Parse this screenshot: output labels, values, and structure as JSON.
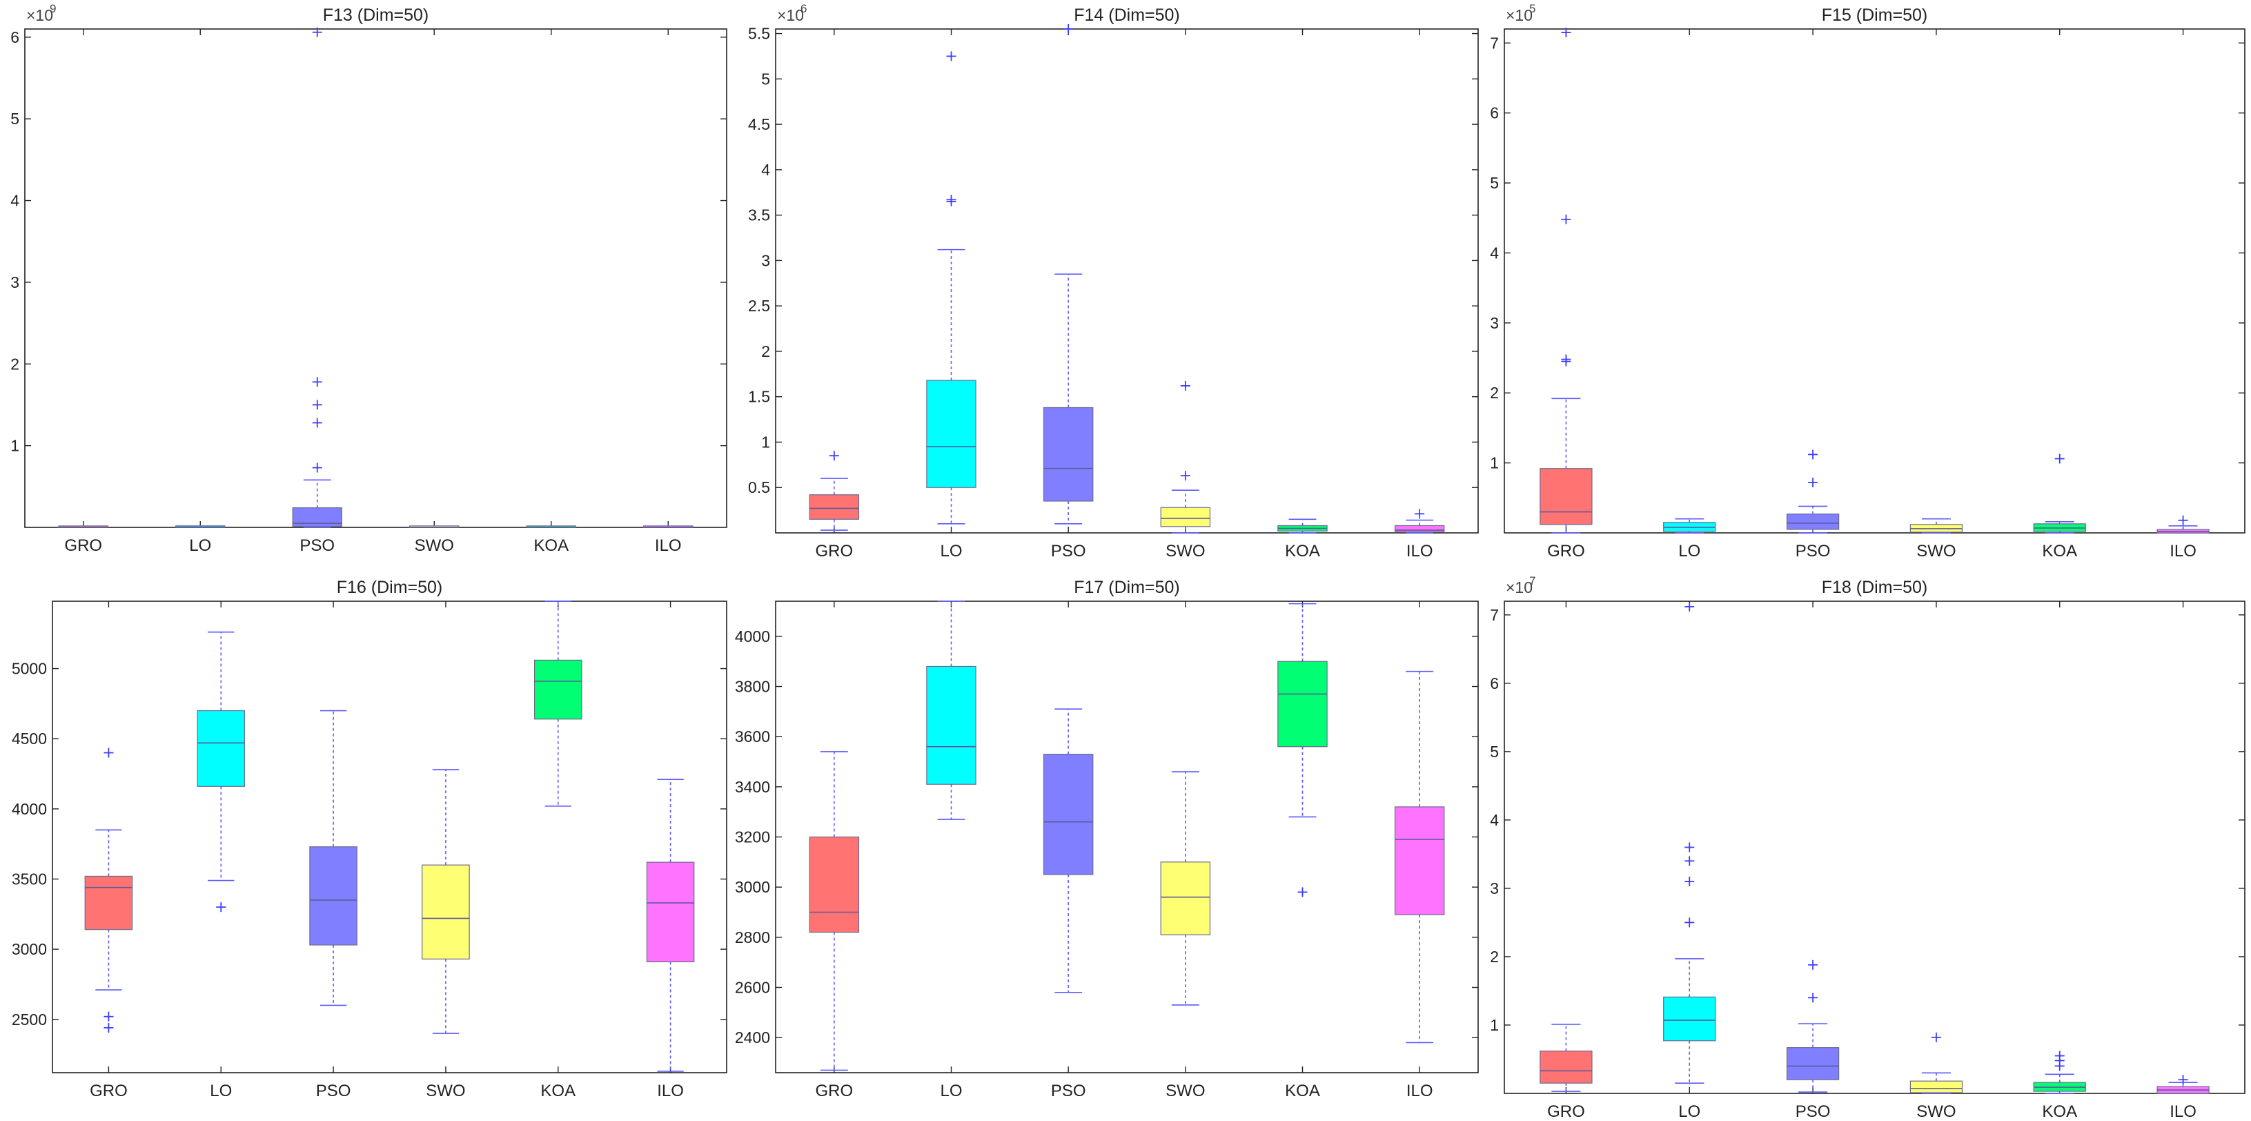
{
  "chart_data": [
    {
      "type": "box",
      "title": "F13 (Dim=50)",
      "exponent_label": "×10",
      "exponent": "9",
      "ylim": [
        0,
        6.1
      ],
      "yticks": [
        1,
        2,
        3,
        4,
        5,
        6
      ],
      "categories": [
        "GRO",
        "LO",
        "PSO",
        "SWO",
        "KOA",
        "ILO"
      ],
      "boxes": [
        {
          "q1": 0.001,
          "median": 0.002,
          "q3": 0.004,
          "whisker_low": 0.0,
          "whisker_high": 0.006,
          "outliers": []
        },
        {
          "q1": 0.002,
          "median": 0.004,
          "q3": 0.008,
          "whisker_low": 0.0,
          "whisker_high": 0.012,
          "outliers": []
        },
        {
          "q1": 0.01,
          "median": 0.05,
          "q3": 0.24,
          "whisker_low": 0.0,
          "whisker_high": 0.58,
          "outliers": [
            0.73,
            1.28,
            1.5,
            1.78,
            6.06
          ]
        },
        {
          "q1": 0.001,
          "median": 0.002,
          "q3": 0.004,
          "whisker_low": 0.0,
          "whisker_high": 0.006,
          "outliers": []
        },
        {
          "q1": 0.001,
          "median": 0.002,
          "q3": 0.004,
          "whisker_low": 0.0,
          "whisker_high": 0.006,
          "outliers": []
        },
        {
          "q1": 0.001,
          "median": 0.002,
          "q3": 0.004,
          "whisker_low": 0.0,
          "whisker_high": 0.006,
          "outliers": []
        }
      ]
    },
    {
      "type": "box",
      "title": "F14 (Dim=50)",
      "exponent_label": "×10",
      "exponent": "6",
      "ylim": [
        0,
        5.55
      ],
      "yticks": [
        0.5,
        1,
        1.5,
        2,
        2.5,
        3,
        3.5,
        4,
        4.5,
        5,
        5.5
      ],
      "categories": [
        "GRO",
        "LO",
        "PSO",
        "SWO",
        "KOA",
        "ILO"
      ],
      "boxes": [
        {
          "q1": 0.15,
          "median": 0.27,
          "q3": 0.42,
          "whisker_low": 0.03,
          "whisker_high": 0.6,
          "outliers": [
            0.85
          ]
        },
        {
          "q1": 0.5,
          "median": 0.95,
          "q3": 1.68,
          "whisker_low": 0.1,
          "whisker_high": 3.12,
          "outliers": [
            3.65,
            3.67,
            5.25
          ]
        },
        {
          "q1": 0.35,
          "median": 0.71,
          "q3": 1.38,
          "whisker_low": 0.1,
          "whisker_high": 2.85,
          "outliers": [
            5.58
          ]
        },
        {
          "q1": 0.07,
          "median": 0.16,
          "q3": 0.28,
          "whisker_low": 0.0,
          "whisker_high": 0.47,
          "outliers": [
            0.63,
            1.62
          ]
        },
        {
          "q1": 0.02,
          "median": 0.05,
          "q3": 0.08,
          "whisker_low": 0.0,
          "whisker_high": 0.15,
          "outliers": []
        },
        {
          "q1": 0.01,
          "median": 0.03,
          "q3": 0.08,
          "whisker_low": 0.0,
          "whisker_high": 0.14,
          "outliers": [
            0.21
          ]
        }
      ]
    },
    {
      "type": "box",
      "title": "F15 (Dim=50)",
      "exponent_label": "×10",
      "exponent": "5",
      "ylim": [
        0,
        7.2
      ],
      "yticks": [
        1,
        2,
        3,
        4,
        5,
        6,
        7
      ],
      "categories": [
        "GRO",
        "LO",
        "PSO",
        "SWO",
        "KOA",
        "ILO"
      ],
      "boxes": [
        {
          "q1": 0.12,
          "median": 0.3,
          "q3": 0.92,
          "whisker_low": 0.0,
          "whisker_high": 1.92,
          "outliers": [
            2.45,
            2.48,
            4.48,
            7.15
          ]
        },
        {
          "q1": 0.02,
          "median": 0.08,
          "q3": 0.15,
          "whisker_low": 0.0,
          "whisker_high": 0.2,
          "outliers": []
        },
        {
          "q1": 0.05,
          "median": 0.14,
          "q3": 0.27,
          "whisker_low": 0.0,
          "whisker_high": 0.38,
          "outliers": [
            0.72,
            1.12
          ]
        },
        {
          "q1": 0.01,
          "median": 0.06,
          "q3": 0.12,
          "whisker_low": 0.0,
          "whisker_high": 0.2,
          "outliers": []
        },
        {
          "q1": 0.02,
          "median": 0.07,
          "q3": 0.13,
          "whisker_low": 0.0,
          "whisker_high": 0.16,
          "outliers": [
            1.06
          ]
        },
        {
          "q1": 0.0,
          "median": 0.02,
          "q3": 0.05,
          "whisker_low": 0.0,
          "whisker_high": 0.1,
          "outliers": [
            0.18
          ]
        }
      ]
    },
    {
      "type": "box",
      "title": "F16 (Dim=50)",
      "exponent_label": "",
      "exponent": "",
      "ylim": [
        2120,
        5480
      ],
      "yticks": [
        2500,
        3000,
        3500,
        4000,
        4500,
        5000
      ],
      "categories": [
        "GRO",
        "LO",
        "PSO",
        "SWO",
        "KOA",
        "ILO"
      ],
      "boxes": [
        {
          "q1": 3140,
          "median": 3440,
          "q3": 3520,
          "whisker_low": 2710,
          "whisker_high": 3850,
          "outliers": [
            2440,
            2520,
            4400
          ]
        },
        {
          "q1": 4160,
          "median": 4470,
          "q3": 4700,
          "whisker_low": 3490,
          "whisker_high": 5260,
          "outliers": [
            3300
          ]
        },
        {
          "q1": 3030,
          "median": 3350,
          "q3": 3730,
          "whisker_low": 2600,
          "whisker_high": 4700,
          "outliers": []
        },
        {
          "q1": 2930,
          "median": 3220,
          "q3": 3600,
          "whisker_low": 2400,
          "whisker_high": 4280,
          "outliers": []
        },
        {
          "q1": 4640,
          "median": 4910,
          "q3": 5060,
          "whisker_low": 4020,
          "whisker_high": 5480,
          "outliers": []
        },
        {
          "q1": 2910,
          "median": 3330,
          "q3": 3620,
          "whisker_low": 2130,
          "whisker_high": 4210,
          "outliers": []
        }
      ]
    },
    {
      "type": "box",
      "title": "F17 (Dim=50)",
      "exponent_label": "",
      "exponent": "",
      "ylim": [
        2260,
        4140
      ],
      "yticks": [
        2400,
        2600,
        2800,
        3000,
        3200,
        3400,
        3600,
        3800,
        4000
      ],
      "categories": [
        "GRO",
        "LO",
        "PSO",
        "SWO",
        "KOA",
        "ILO"
      ],
      "boxes": [
        {
          "q1": 2820,
          "median": 2900,
          "q3": 3200,
          "whisker_low": 2270,
          "whisker_high": 3540,
          "outliers": []
        },
        {
          "q1": 3410,
          "median": 3560,
          "q3": 3880,
          "whisker_low": 3270,
          "whisker_high": 4140,
          "outliers": []
        },
        {
          "q1": 3050,
          "median": 3260,
          "q3": 3530,
          "whisker_low": 2580,
          "whisker_high": 3710,
          "outliers": []
        },
        {
          "q1": 2810,
          "median": 2960,
          "q3": 3100,
          "whisker_low": 2530,
          "whisker_high": 3460,
          "outliers": []
        },
        {
          "q1": 3560,
          "median": 3770,
          "q3": 3900,
          "whisker_low": 3280,
          "whisker_high": 4130,
          "outliers": [
            2980
          ]
        },
        {
          "q1": 2890,
          "median": 3190,
          "q3": 3320,
          "whisker_low": 2380,
          "whisker_high": 3860,
          "outliers": []
        }
      ]
    },
    {
      "type": "box",
      "title": "F18 (Dim=50)",
      "exponent_label": "×10",
      "exponent": "7",
      "ylim": [
        0,
        7.2
      ],
      "yticks": [
        1,
        2,
        3,
        4,
        5,
        6,
        7
      ],
      "categories": [
        "GRO",
        "LO",
        "PSO",
        "SWO",
        "KOA",
        "ILO"
      ],
      "boxes": [
        {
          "q1": 0.15,
          "median": 0.33,
          "q3": 0.62,
          "whisker_low": 0.03,
          "whisker_high": 1.01,
          "outliers": []
        },
        {
          "q1": 0.77,
          "median": 1.07,
          "q3": 1.41,
          "whisker_low": 0.15,
          "whisker_high": 1.97,
          "outliers": [
            2.5,
            3.1,
            3.4,
            3.6,
            7.12
          ]
        },
        {
          "q1": 0.2,
          "median": 0.4,
          "q3": 0.67,
          "whisker_low": 0.02,
          "whisker_high": 1.02,
          "outliers": [
            1.4,
            1.88
          ]
        },
        {
          "q1": 0.01,
          "median": 0.07,
          "q3": 0.18,
          "whisker_low": 0.0,
          "whisker_high": 0.3,
          "outliers": [
            0.82
          ]
        },
        {
          "q1": 0.03,
          "median": 0.09,
          "q3": 0.16,
          "whisker_low": 0.0,
          "whisker_high": 0.28,
          "outliers": [
            0.4,
            0.48,
            0.55
          ]
        },
        {
          "q1": 0.0,
          "median": 0.05,
          "q3": 0.1,
          "whisker_low": 0.0,
          "whisker_high": 0.16,
          "outliers": [
            0.2
          ]
        }
      ]
    }
  ],
  "colors": {
    "box_fills": [
      "#ff7373",
      "#00ffff",
      "#7f7fff",
      "#ffff73",
      "#00ff73",
      "#ff73ff"
    ],
    "whisker": "#5a5aff",
    "outlier": "#3c3cff",
    "axis": "#222222",
    "text": "#222222"
  }
}
